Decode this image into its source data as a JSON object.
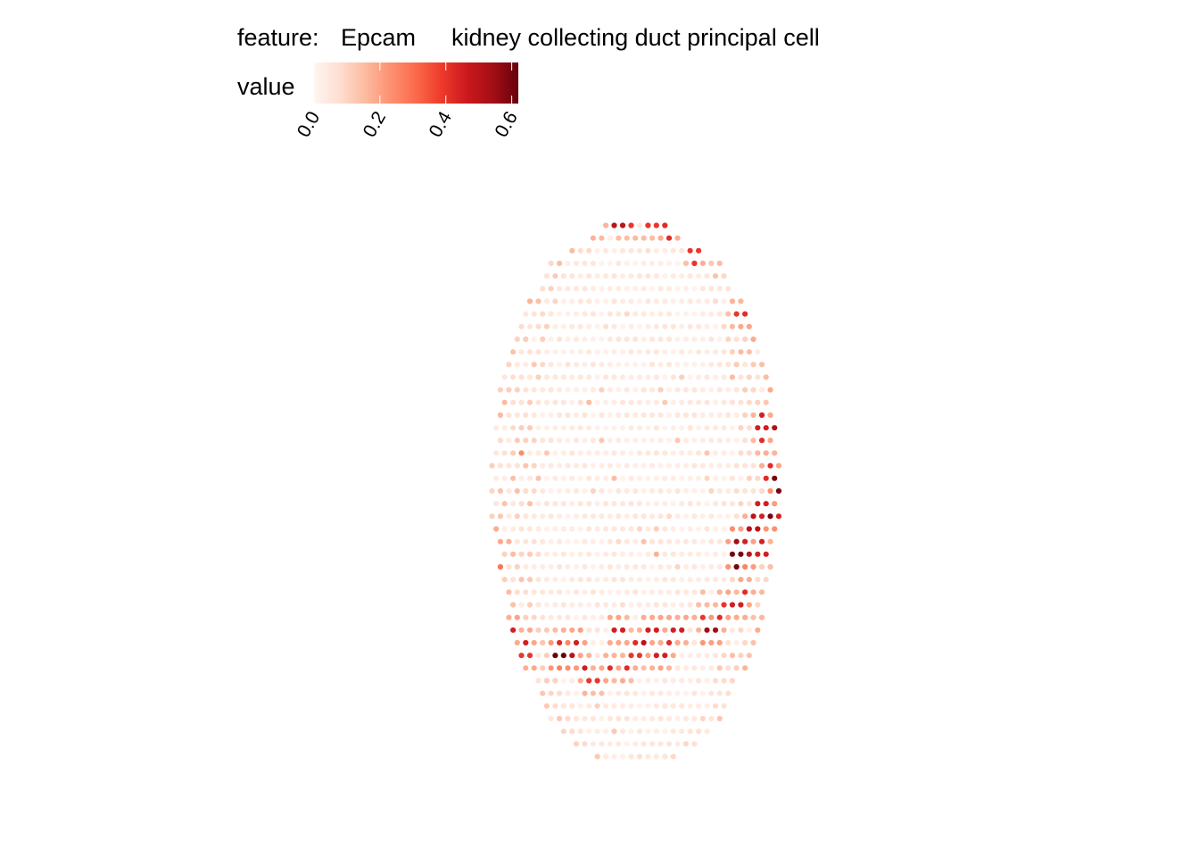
{
  "title": {
    "feature_label": "feature:",
    "feature_value": "Epcam",
    "cell_type": "kidney collecting duct principal cell"
  },
  "legend": {
    "title": "value",
    "ticks": [
      "0.0",
      "0.2",
      "0.4",
      "0.6"
    ],
    "placement": "top"
  },
  "chart_data": {
    "type": "scatter",
    "subtype": "spatial spot map",
    "title": "feature:  Epcam    kidney collecting duct principal cell",
    "color_scale": {
      "name": "value",
      "limits": [
        0,
        0.62
      ],
      "breaks": [
        0.0,
        0.2,
        0.4,
        0.6
      ],
      "palette": [
        "#fff5f0",
        "#fee0d2",
        "#fcbba1",
        "#fc9272",
        "#fb6a4a",
        "#ef3b2c",
        "#cb181d",
        "#a50f15",
        "#67000d"
      ]
    },
    "grid": false,
    "axes": "hidden",
    "spot_grid": {
      "cols": 56,
      "rows": 49,
      "x_range": [
        0,
        55
      ],
      "y_range": [
        0,
        48
      ],
      "hex_offset": true
    },
    "tissue_shape": {
      "center": [
        29,
        24
      ],
      "radius_x_profile": [
        [
          -21,
          3.5
        ],
        [
          -18,
          10
        ],
        [
          -14,
          13.5
        ],
        [
          -10,
          15.5
        ],
        [
          -6,
          16.5
        ],
        [
          -2,
          17
        ],
        [
          2,
          17
        ],
        [
          6,
          16
        ],
        [
          10,
          15
        ],
        [
          14,
          13
        ],
        [
          18,
          10
        ],
        [
          20,
          7.5
        ],
        [
          21.5,
          4
        ]
      ]
    },
    "note_values": "value per spot on color scale; hotspots listed as [col,row,value]",
    "hotspots": [
      [
        27.5,
        0.5,
        0.55
      ],
      [
        30.5,
        1,
        0.62
      ],
      [
        26,
        2,
        0.45
      ],
      [
        27,
        2.5,
        0.5
      ],
      [
        28,
        3,
        0.4
      ],
      [
        24,
        3,
        0.35
      ],
      [
        20,
        3,
        0.6
      ],
      [
        19,
        2.5,
        0.45
      ],
      [
        31,
        3,
        0.4
      ],
      [
        33,
        3.5,
        0.42
      ],
      [
        36,
        5.5,
        0.4
      ],
      [
        40,
        5,
        0.42
      ],
      [
        41,
        4.5,
        0.5
      ],
      [
        17,
        6,
        0.55
      ],
      [
        16.5,
        5,
        0.5
      ],
      [
        15.5,
        6.5,
        0.45
      ],
      [
        14.5,
        8,
        0.62
      ],
      [
        13,
        7.5,
        0.4
      ],
      [
        43,
        8.5,
        0.52
      ],
      [
        44,
        8,
        0.5
      ],
      [
        44,
        9,
        0.58
      ],
      [
        42,
        10,
        0.42
      ],
      [
        44,
        10,
        0.5
      ],
      [
        41,
        10,
        0.4
      ],
      [
        8,
        10.5,
        0.45
      ],
      [
        9,
        11.5,
        0.5
      ],
      [
        7,
        12,
        0.4
      ],
      [
        6,
        13,
        0.62
      ],
      [
        11,
        12,
        0.35
      ],
      [
        44,
        11.5,
        0.42
      ],
      [
        8,
        14,
        0.45
      ],
      [
        9,
        15,
        0.55
      ],
      [
        7,
        16,
        0.5
      ],
      [
        8,
        16.5,
        0.45
      ],
      [
        6,
        16.5,
        0.55
      ],
      [
        10,
        15,
        0.4
      ],
      [
        11,
        15.5,
        0.35
      ],
      [
        45,
        14,
        0.4
      ],
      [
        47,
        15,
        0.42
      ],
      [
        47,
        16,
        0.35
      ],
      [
        46,
        17,
        0.4
      ],
      [
        46,
        18.5,
        0.52
      ],
      [
        47,
        18.5,
        0.5
      ],
      [
        44,
        18.5,
        0.45
      ],
      [
        3,
        20,
        0.5
      ],
      [
        2,
        20,
        0.4
      ],
      [
        6,
        21,
        0.42
      ],
      [
        46,
        20,
        0.45
      ],
      [
        44,
        20,
        0.42
      ],
      [
        45,
        22,
        0.4
      ],
      [
        3,
        23,
        0.5
      ],
      [
        4,
        23,
        0.45
      ],
      [
        5,
        23,
        0.45
      ],
      [
        7,
        22.5,
        0.42
      ],
      [
        46,
        23,
        0.55
      ],
      [
        46,
        23.5,
        0.6
      ],
      [
        47,
        23,
        0.45
      ],
      [
        45,
        22.5,
        0.42
      ],
      [
        8,
        25,
        0.55
      ],
      [
        7,
        24.5,
        0.4
      ],
      [
        45,
        26,
        0.6
      ],
      [
        44,
        25.5,
        0.45
      ],
      [
        46,
        26,
        0.45
      ],
      [
        43,
        26.5,
        0.5
      ],
      [
        8,
        28,
        0.55
      ],
      [
        9,
        28.5,
        0.5
      ],
      [
        10,
        28,
        0.45
      ],
      [
        11,
        28.5,
        0.45
      ],
      [
        7,
        29.5,
        0.45
      ],
      [
        12,
        28,
        0.42
      ],
      [
        41,
        28,
        0.55
      ],
      [
        42,
        29,
        0.5
      ],
      [
        42,
        28.5,
        0.45
      ],
      [
        44,
        28.5,
        0.45
      ],
      [
        41,
        29.5,
        0.6
      ],
      [
        42,
        32,
        0.42
      ],
      [
        41,
        33,
        0.45
      ],
      [
        39,
        34,
        0.42
      ],
      [
        40,
        33,
        0.4
      ],
      [
        38,
        35,
        0.55
      ],
      [
        37,
        34,
        0.4
      ],
      [
        34,
        35,
        0.45
      ],
      [
        13,
        34,
        0.42
      ],
      [
        14,
        35,
        0.45
      ],
      [
        16,
        36,
        0.45
      ],
      [
        20,
        36,
        0.42
      ],
      [
        21,
        37,
        0.5
      ],
      [
        22,
        36,
        0.45
      ],
      [
        20,
        37,
        0.62
      ],
      [
        23,
        38,
        0.45
      ],
      [
        29,
        36,
        0.42
      ],
      [
        30,
        36,
        0.5
      ],
      [
        31,
        35,
        0.45
      ],
      [
        32,
        37,
        0.45
      ],
      [
        27,
        35,
        0.45
      ],
      [
        28,
        38,
        0.42
      ],
      [
        29,
        37,
        0.4
      ],
      [
        26,
        38,
        0.42
      ],
      [
        24,
        39,
        0.4
      ],
      [
        16,
        37,
        0.4
      ],
      [
        33,
        36,
        0.42
      ]
    ]
  }
}
